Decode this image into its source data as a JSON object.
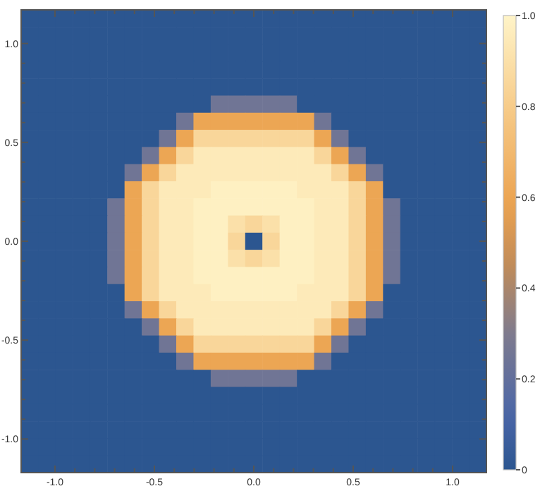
{
  "chart_data": {
    "type": "heatmap",
    "xlim": [
      -1.17,
      1.17
    ],
    "ylim": [
      -1.17,
      1.17
    ],
    "xticks": [
      {
        "value": -1,
        "label": "-1.0"
      },
      {
        "value": -0.9,
        "label": null
      },
      {
        "value": -0.8,
        "label": null
      },
      {
        "value": -0.7,
        "label": null
      },
      {
        "value": -0.6,
        "label": null
      },
      {
        "value": -0.5,
        "label": "-0.5"
      },
      {
        "value": -0.4,
        "label": null
      },
      {
        "value": -0.3,
        "label": null
      },
      {
        "value": -0.2,
        "label": null
      },
      {
        "value": -0.1,
        "label": null
      },
      {
        "value": 0,
        "label": "0.0"
      },
      {
        "value": 0.1,
        "label": null
      },
      {
        "value": 0.2,
        "label": null
      },
      {
        "value": 0.3,
        "label": null
      },
      {
        "value": 0.4,
        "label": null
      },
      {
        "value": 0.5,
        "label": "0.5"
      },
      {
        "value": 0.6,
        "label": null
      },
      {
        "value": 0.7,
        "label": null
      },
      {
        "value": 0.8,
        "label": null
      },
      {
        "value": 0.9,
        "label": null
      },
      {
        "value": 1,
        "label": "1.0"
      }
    ],
    "yticks": [
      {
        "value": -1,
        "label": "-1.0"
      },
      {
        "value": -0.9,
        "label": null
      },
      {
        "value": -0.8,
        "label": null
      },
      {
        "value": -0.7,
        "label": null
      },
      {
        "value": -0.6,
        "label": null
      },
      {
        "value": -0.5,
        "label": "-0.5"
      },
      {
        "value": -0.4,
        "label": null
      },
      {
        "value": -0.3,
        "label": null
      },
      {
        "value": -0.2,
        "label": null
      },
      {
        "value": -0.1,
        "label": null
      },
      {
        "value": 0,
        "label": "0.0"
      },
      {
        "value": 0.1,
        "label": null
      },
      {
        "value": 0.2,
        "label": null
      },
      {
        "value": 0.3,
        "label": null
      },
      {
        "value": 0.4,
        "label": null
      },
      {
        "value": 0.5,
        "label": "0.5"
      },
      {
        "value": 0.6,
        "label": null
      },
      {
        "value": 0.7,
        "label": null
      },
      {
        "value": 0.8,
        "label": null
      },
      {
        "value": 0.9,
        "label": null
      },
      {
        "value": 1,
        "label": "1.0"
      }
    ],
    "clim": [
      0,
      1
    ],
    "cticks": [
      0,
      0.2,
      0.4,
      0.6,
      0.8,
      {
        "value": 1,
        "label": "1.0"
      }
    ],
    "cells": [
      [
        0,
        0,
        0,
        0,
        0,
        0,
        0,
        0,
        0,
        0,
        0,
        0,
        0,
        0,
        0,
        0,
        0,
        0,
        0,
        0,
        0,
        0,
        0,
        0,
        0,
        0,
        0
      ],
      [
        0,
        0,
        0,
        0,
        0,
        0,
        0,
        0,
        0,
        0,
        0,
        0,
        0,
        0,
        0,
        0,
        0,
        0,
        0,
        0,
        0,
        0,
        0,
        0,
        0,
        0,
        0
      ],
      [
        0,
        0,
        0,
        0,
        0,
        0,
        0,
        0,
        0,
        0,
        0,
        0,
        0,
        0,
        0,
        0,
        0,
        0,
        0,
        0,
        0,
        0,
        0,
        0,
        0,
        0,
        0
      ],
      [
        0,
        0,
        0,
        0,
        0,
        0,
        0,
        0,
        0,
        0,
        0,
        0,
        0,
        0,
        0,
        0,
        0,
        0,
        0,
        0,
        0,
        0,
        0,
        0,
        0,
        0,
        0
      ],
      [
        0,
        0,
        0,
        0,
        0,
        0,
        0,
        0,
        0,
        0,
        0,
        0,
        0,
        0,
        0,
        0,
        0,
        0,
        0,
        0,
        0,
        0,
        0,
        0,
        0,
        0,
        0
      ],
      [
        0,
        0,
        0,
        0,
        0,
        0,
        0,
        0,
        0,
        0,
        0,
        0.25,
        0.25,
        0.25,
        0.25,
        0.25,
        0,
        0,
        0,
        0,
        0,
        0,
        0,
        0,
        0,
        0,
        0
      ],
      [
        0,
        0,
        0,
        0,
        0,
        0,
        0,
        0,
        0,
        0.25,
        0.6,
        0.6,
        0.6,
        0.6,
        0.6,
        0.6,
        0.6,
        0.25,
        0,
        0,
        0,
        0,
        0,
        0,
        0,
        0,
        0
      ],
      [
        0,
        0,
        0,
        0,
        0,
        0,
        0,
        0,
        0.25,
        0.6,
        0.85,
        0.85,
        0.85,
        0.85,
        0.85,
        0.85,
        0.85,
        0.6,
        0.25,
        0,
        0,
        0,
        0,
        0,
        0,
        0,
        0
      ],
      [
        0,
        0,
        0,
        0,
        0,
        0,
        0,
        0.25,
        0.6,
        0.85,
        0.95,
        0.95,
        0.95,
        0.95,
        0.95,
        0.95,
        0.95,
        0.85,
        0.6,
        0.25,
        0,
        0,
        0,
        0,
        0,
        0,
        0
      ],
      [
        0,
        0,
        0,
        0,
        0,
        0,
        0.25,
        0.6,
        0.85,
        0.95,
        0.95,
        0.95,
        0.95,
        0.95,
        0.95,
        0.95,
        0.95,
        0.95,
        0.85,
        0.6,
        0.25,
        0,
        0,
        0,
        0,
        0,
        0
      ],
      [
        0,
        0,
        0,
        0,
        0,
        0,
        0.6,
        0.85,
        0.95,
        0.95,
        0.95,
        0.98,
        0.98,
        0.98,
        0.98,
        0.98,
        0.95,
        0.95,
        0.95,
        0.85,
        0.6,
        0,
        0,
        0,
        0,
        0,
        0
      ],
      [
        0,
        0,
        0,
        0,
        0,
        0.25,
        0.6,
        0.85,
        0.95,
        0.95,
        0.98,
        0.98,
        0.98,
        0.98,
        0.98,
        0.98,
        0.98,
        0.95,
        0.95,
        0.85,
        0.6,
        0.25,
        0,
        0,
        0,
        0,
        0
      ],
      [
        0,
        0,
        0,
        0,
        0,
        0.25,
        0.6,
        0.85,
        0.95,
        0.95,
        0.98,
        0.98,
        0.9,
        0.85,
        0.9,
        0.98,
        0.98,
        0.95,
        0.95,
        0.85,
        0.6,
        0.25,
        0,
        0,
        0,
        0,
        0
      ],
      [
        0,
        0,
        0,
        0,
        0,
        0.25,
        0.6,
        0.85,
        0.95,
        0.95,
        0.98,
        0.98,
        0.85,
        0,
        0.85,
        0.98,
        0.98,
        0.95,
        0.95,
        0.85,
        0.6,
        0.25,
        0,
        0,
        0,
        0,
        0
      ],
      [
        0,
        0,
        0,
        0,
        0,
        0.25,
        0.6,
        0.85,
        0.95,
        0.95,
        0.98,
        0.98,
        0.9,
        0.85,
        0.9,
        0.98,
        0.98,
        0.95,
        0.95,
        0.85,
        0.6,
        0.25,
        0,
        0,
        0,
        0,
        0
      ],
      [
        0,
        0,
        0,
        0,
        0,
        0.25,
        0.6,
        0.85,
        0.95,
        0.95,
        0.98,
        0.98,
        0.98,
        0.98,
        0.98,
        0.98,
        0.98,
        0.95,
        0.95,
        0.85,
        0.6,
        0.25,
        0,
        0,
        0,
        0,
        0
      ],
      [
        0,
        0,
        0,
        0,
        0,
        0,
        0.6,
        0.85,
        0.95,
        0.95,
        0.95,
        0.98,
        0.98,
        0.98,
        0.98,
        0.98,
        0.95,
        0.95,
        0.95,
        0.85,
        0.6,
        0,
        0,
        0,
        0,
        0,
        0
      ],
      [
        0,
        0,
        0,
        0,
        0,
        0,
        0.25,
        0.6,
        0.85,
        0.95,
        0.95,
        0.95,
        0.95,
        0.95,
        0.95,
        0.95,
        0.95,
        0.95,
        0.85,
        0.6,
        0.25,
        0,
        0,
        0,
        0,
        0,
        0
      ],
      [
        0,
        0,
        0,
        0,
        0,
        0,
        0,
        0.25,
        0.6,
        0.85,
        0.95,
        0.95,
        0.95,
        0.95,
        0.95,
        0.95,
        0.95,
        0.85,
        0.6,
        0.25,
        0,
        0,
        0,
        0,
        0,
        0,
        0
      ],
      [
        0,
        0,
        0,
        0,
        0,
        0,
        0,
        0,
        0.25,
        0.6,
        0.85,
        0.85,
        0.85,
        0.85,
        0.85,
        0.85,
        0.85,
        0.6,
        0.25,
        0,
        0,
        0,
        0,
        0,
        0,
        0,
        0
      ],
      [
        0,
        0,
        0,
        0,
        0,
        0,
        0,
        0,
        0,
        0.25,
        0.6,
        0.6,
        0.6,
        0.6,
        0.6,
        0.6,
        0.6,
        0.25,
        0,
        0,
        0,
        0,
        0,
        0,
        0,
        0,
        0
      ],
      [
        0,
        0,
        0,
        0,
        0,
        0,
        0,
        0,
        0,
        0,
        0,
        0.25,
        0.25,
        0.25,
        0.25,
        0.25,
        0,
        0,
        0,
        0,
        0,
        0,
        0,
        0,
        0,
        0,
        0
      ],
      [
        0,
        0,
        0,
        0,
        0,
        0,
        0,
        0,
        0,
        0,
        0,
        0,
        0,
        0,
        0,
        0,
        0,
        0,
        0,
        0,
        0,
        0,
        0,
        0,
        0,
        0,
        0
      ],
      [
        0,
        0,
        0,
        0,
        0,
        0,
        0,
        0,
        0,
        0,
        0,
        0,
        0,
        0,
        0,
        0,
        0,
        0,
        0,
        0,
        0,
        0,
        0,
        0,
        0,
        0,
        0
      ],
      [
        0,
        0,
        0,
        0,
        0,
        0,
        0,
        0,
        0,
        0,
        0,
        0,
        0,
        0,
        0,
        0,
        0,
        0,
        0,
        0,
        0,
        0,
        0,
        0,
        0,
        0,
        0
      ],
      [
        0,
        0,
        0,
        0,
        0,
        0,
        0,
        0,
        0,
        0,
        0,
        0,
        0,
        0,
        0,
        0,
        0,
        0,
        0,
        0,
        0,
        0,
        0,
        0,
        0,
        0,
        0
      ],
      [
        0,
        0,
        0,
        0,
        0,
        0,
        0,
        0,
        0,
        0,
        0,
        0,
        0,
        0,
        0,
        0,
        0,
        0,
        0,
        0,
        0,
        0,
        0,
        0,
        0,
        0,
        0
      ]
    ]
  }
}
